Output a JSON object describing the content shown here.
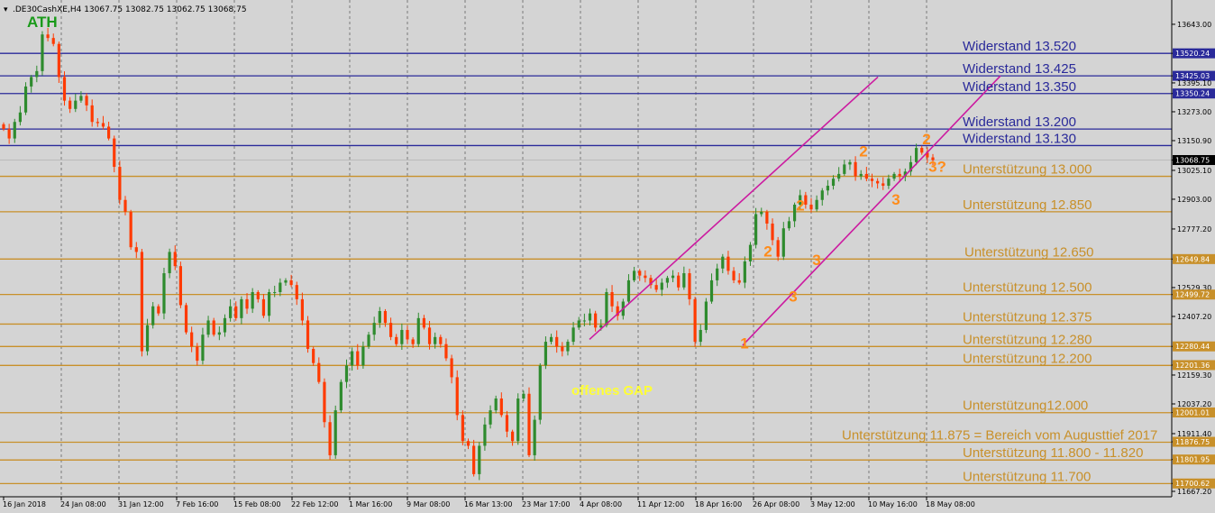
{
  "header": {
    "title": ".DE30CashXE,H4  13067.75 13082.75 13062.75 13068.75"
  },
  "colors": {
    "background": "#d4d4d4",
    "bull": "#2e8b2e",
    "bear": "#ff3a00",
    "resistance": "#2a2a9a",
    "support": "#c8902a",
    "channel": "#cc1aa0",
    "wave": "#ff8c1a",
    "ath": "#1a9a1a",
    "gap": "#ffff33",
    "price_tag": "#000000"
  },
  "chart_data": {
    "type": "candlestick",
    "symbol": ".DE30CashXE",
    "timeframe": "H4",
    "ohlc_header": "13067.75 13082.75 13062.75 13068.75",
    "ylim": [
      11667.2,
      13700
    ],
    "y_ticks": [
      "13643.00",
      "13520.24",
      "13425.03",
      "13395.10",
      "13350.24",
      "13273.00",
      "13150.90",
      "13068.75",
      "13025.10",
      "12903.00",
      "12777.20",
      "12649.84",
      "12529.30",
      "12499.72",
      "12407.20",
      "12280.44",
      "12201.36",
      "12159.30",
      "12037.20",
      "12001.01",
      "11911.40",
      "11876.75",
      "11801.95",
      "11700.62",
      "11667.20"
    ],
    "x_ticks": [
      "16 Jan 2018",
      "24 Jan 08:00",
      "31 Jan 12:00",
      "7 Feb 16:00",
      "15 Feb 08:00",
      "22 Feb 12:00",
      "1 Mar 16:00",
      "9 Mar 08:00",
      "16 Mar 13:00",
      "23 Mar 17:00",
      "4 Apr 08:00",
      "11 Apr 12:00",
      "18 Apr 16:00",
      "26 Apr 08:00",
      "3 May 12:00",
      "10 May 16:00",
      "18 May 08:00"
    ],
    "levels": [
      {
        "name": "Widerstand 13.520",
        "price": 13520,
        "kind": "resistance",
        "tag": "13520.24"
      },
      {
        "name": "Widerstand 13.425",
        "price": 13425,
        "kind": "resistance",
        "tag": "13425.03"
      },
      {
        "name": "Widerstand 13.350",
        "price": 13350,
        "kind": "resistance",
        "tag": "13350.24"
      },
      {
        "name": "Widerstand 13.200",
        "price": 13200,
        "kind": "resistance",
        "tag": ""
      },
      {
        "name": "Widerstand 13.130",
        "price": 13130,
        "kind": "resistance",
        "tag": ""
      },
      {
        "name": "Unterstützung 13.000",
        "price": 13000,
        "kind": "support",
        "tag": ""
      },
      {
        "name": "Unterstützung 12.850",
        "price": 12850,
        "kind": "support",
        "tag": ""
      },
      {
        "name": "Unterstützung 12.650",
        "price": 12650,
        "kind": "support",
        "tag": "12649.84"
      },
      {
        "name": "Unterstützung 12.500",
        "price": 12500,
        "kind": "support",
        "tag": "12499.72"
      },
      {
        "name": "Unterstützung 12.375",
        "price": 12375,
        "kind": "support",
        "tag": ""
      },
      {
        "name": "Unterstützung 12.280",
        "price": 12280,
        "kind": "support",
        "tag": "12280.44"
      },
      {
        "name": "Unterstützung 12.200",
        "price": 12200,
        "kind": "support",
        "tag": "12201.36"
      },
      {
        "name": "Unterstützung12.000",
        "price": 12000,
        "kind": "support",
        "tag": "12001.01"
      },
      {
        "name": "Unterstützung 11.875 = Bereich vom Augusttief 2017",
        "price": 11875,
        "kind": "support",
        "tag": "11876.75"
      },
      {
        "name": "Unterstützung 11.800 - 11.820",
        "price": 11800,
        "kind": "support",
        "tag": "11801.95"
      },
      {
        "name": "Unterstützung 11.700",
        "price": 11700,
        "kind": "support",
        "tag": "11700.62"
      }
    ],
    "current_price": "13068.75",
    "annotations": [
      {
        "text": "ATH",
        "x": "16 Jan 2018",
        "y": 13690,
        "color": "ath"
      },
      {
        "text": "offenes GAP",
        "x": "4 Apr 08:00",
        "y": 12110,
        "color": "gap"
      }
    ],
    "waves": [
      {
        "text": "1",
        "x": "18 Apr 16:00",
        "y": 12272
      },
      {
        "text": "2",
        "x": "26 Apr 08:00",
        "y": 12660
      },
      {
        "text": "3",
        "x": "26 Apr 08:00",
        "y": 12470
      },
      {
        "text": "2",
        "x": "26 Apr 08:00",
        "y": 12855
      },
      {
        "text": "3",
        "x": "26 Apr 08:00",
        "y": 12625
      },
      {
        "text": "2",
        "x": "3 May 12:00",
        "y": 13085
      },
      {
        "text": "3",
        "x": "10 May 16:00",
        "y": 12880
      },
      {
        "text": "2",
        "x": "10 May 16:00",
        "y": 13135
      },
      {
        "text": "3?",
        "x": "18 May 08:00",
        "y": 13020
      }
    ],
    "channel": {
      "upper": [
        [
          12310,
          "4 Apr 08:00"
        ],
        [
          13420,
          "10 May 16:00"
        ]
      ],
      "lower": [
        [
          12285,
          "18 Apr 16:00"
        ],
        [
          13425,
          "18 May 08:00"
        ]
      ]
    },
    "closes": [
      13200,
      13160,
      13230,
      13270,
      13380,
      13420,
      13445,
      13600,
      13585,
      13560,
      13420,
      13320,
      13285,
      13320,
      13340,
      13300,
      13230,
      13225,
      13210,
      13160,
      13040,
      12900,
      12850,
      12700,
      12680,
      12260,
      12370,
      12450,
      12420,
      12590,
      12680,
      12620,
      12455,
      12340,
      12280,
      12220,
      12330,
      12390,
      12330,
      12340,
      12400,
      12450,
      12400,
      12480,
      12440,
      12510,
      12480,
      12410,
      12510,
      12510,
      12550,
      12560,
      12540,
      12480,
      12390,
      12270,
      12210,
      12130,
      11960,
      11820,
      12010,
      12130,
      12200,
      12260,
      12200,
      12280,
      12330,
      12380,
      12430,
      12380,
      12320,
      12290,
      12350,
      12310,
      12290,
      12400,
      12360,
      12290,
      12320,
      12290,
      12230,
      12150,
      11990,
      11880,
      11860,
      11740,
      11860,
      11950,
      12010,
      12060,
      11990,
      11920,
      11880,
      12060,
      12080,
      11820,
      11970,
      12200,
      12300,
      12320,
      12280,
      12260,
      12300,
      12360,
      12390,
      12390,
      12420,
      12360,
      12370,
      12510,
      12450,
      12410,
      12470,
      12560,
      12600,
      12580,
      12570,
      12540,
      12520,
      12550,
      12570,
      12580,
      12530,
      12590,
      12480,
      12300,
      12350,
      12470,
      12560,
      12610,
      12660,
      12600,
      12560,
      12550,
      12640,
      12710,
      12840,
      12850,
      12800,
      12730,
      12660,
      12780,
      12810,
      12880,
      12920,
      12880,
      12860,
      12900,
      12940,
      12960,
      12990,
      13010,
      13050,
      13060,
      13000,
      13010,
      12990,
      12980,
      12970,
      12960,
      12990,
      13010,
      13000,
      13020,
      13060,
      13120,
      13100,
      13080,
      13068
    ]
  }
}
